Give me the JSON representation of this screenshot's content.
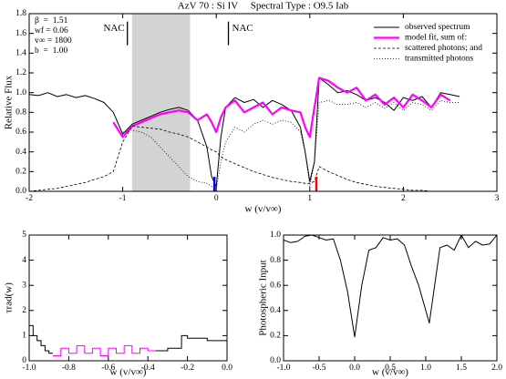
{
  "chart_data": [
    {
      "type": "line",
      "title": "AzV 70 : Si IV     Spectral Type : O9.5 Iab",
      "xlabel": "w (v/v∞)",
      "ylabel": "Relative Flux",
      "xlim": [
        -2,
        3
      ],
      "ylim": [
        0,
        1.8
      ],
      "xticks": [
        -2,
        -1,
        0,
        1,
        2,
        3
      ],
      "yticks": [
        {
          "value": 0,
          "label": "0.0"
        },
        0.2,
        0.4,
        0.6,
        0.8,
        {
          "value": 1,
          "label": "1.0"
        },
        1.2,
        1.4,
        1.6,
        1.8
      ],
      "parameters": [
        "β  =  1.51",
        "wf = 0.06",
        "v∞ = 1800",
        "b  =  1.00"
      ],
      "shaded_region": [
        -0.9,
        -0.28
      ],
      "shade_color": "#d3d3d3",
      "markers": [
        {
          "x": -0.02,
          "color": "#0000ff"
        },
        {
          "x": 1.07,
          "color": "#ff0000"
        }
      ],
      "annotations": [
        {
          "text": "NAC",
          "x": -0.95
        },
        {
          "text": "NAC",
          "x": 0.13
        }
      ],
      "x": [
        -2.0,
        -1.9,
        -1.8,
        -1.7,
        -1.6,
        -1.5,
        -1.4,
        -1.3,
        -1.2,
        -1.1,
        -1.0,
        -0.9,
        -0.8,
        -0.7,
        -0.6,
        -0.5,
        -0.4,
        -0.3,
        -0.2,
        -0.1,
        -0.05,
        0.0,
        0.05,
        0.1,
        0.2,
        0.3,
        0.4,
        0.5,
        0.6,
        0.7,
        0.8,
        0.9,
        0.95,
        1.0,
        1.05,
        1.1,
        1.2,
        1.3,
        1.4,
        1.5,
        1.6,
        1.7,
        1.8,
        1.9,
        2.0,
        2.1,
        2.2,
        2.3,
        2.4,
        2.5,
        2.6
      ],
      "series": [
        {
          "name": "observed spectrum",
          "color": "#000000",
          "dash": "solid",
          "width": 1,
          "values": [
            0.98,
            0.97,
            1.0,
            0.96,
            0.98,
            0.95,
            0.97,
            0.94,
            0.9,
            0.8,
            0.58,
            0.68,
            0.72,
            0.76,
            0.8,
            0.83,
            0.85,
            0.82,
            0.72,
            0.45,
            0.15,
            0.05,
            0.55,
            0.85,
            0.95,
            0.9,
            0.93,
            0.85,
            0.92,
            0.88,
            0.82,
            0.65,
            0.4,
            0.1,
            0.3,
            1.15,
            1.08,
            1.0,
            1.02,
            0.98,
            0.92,
            0.95,
            0.9,
            0.82,
            0.95,
            0.92,
            0.96,
            0.85,
            1.0,
            0.98,
            0.96
          ]
        },
        {
          "name": "model fit, sum of:",
          "color": "#ff00ff",
          "dash": "solid",
          "width": 2.2,
          "values": [
            null,
            null,
            null,
            null,
            null,
            null,
            null,
            null,
            null,
            0.7,
            0.55,
            0.66,
            0.7,
            0.74,
            0.78,
            0.8,
            0.82,
            0.8,
            0.72,
            0.78,
            0.7,
            0.6,
            0.75,
            0.85,
            0.92,
            0.8,
            0.85,
            0.9,
            0.78,
            0.85,
            0.82,
            0.8,
            0.65,
            0.55,
            0.85,
            1.15,
            1.12,
            1.05,
            1.0,
            1.05,
            0.92,
            0.98,
            0.88,
            0.95,
            0.85,
            0.98,
            0.92,
            0.85,
            0.98,
            0.92,
            null
          ]
        },
        {
          "name": "scattered photons; and",
          "color": "#000000",
          "dash": "dashed",
          "width": 0.8,
          "values": [
            0.0,
            0.01,
            0.02,
            0.03,
            0.05,
            0.07,
            0.09,
            0.12,
            0.15,
            0.2,
            0.5,
            0.66,
            0.65,
            0.64,
            0.63,
            0.6,
            0.58,
            0.55,
            0.5,
            0.45,
            0.42,
            0.4,
            0.35,
            0.32,
            0.28,
            0.24,
            0.2,
            0.17,
            0.14,
            0.12,
            0.1,
            0.09,
            0.08,
            0.08,
            0.1,
            0.25,
            0.2,
            0.16,
            0.12,
            0.09,
            0.07,
            0.05,
            0.04,
            0.03,
            0.02,
            0.01,
            0.01,
            0.0,
            0.0,
            0.0,
            0.0
          ]
        },
        {
          "name": "transmitted photons",
          "color": "#000000",
          "dash": "dotted",
          "width": 0.8,
          "values": [
            null,
            null,
            null,
            null,
            null,
            null,
            null,
            null,
            null,
            null,
            0.6,
            0.62,
            0.6,
            0.55,
            0.45,
            0.35,
            0.25,
            0.15,
            0.1,
            0.08,
            0.05,
            0.02,
            0.3,
            0.5,
            0.65,
            0.6,
            0.68,
            0.72,
            0.68,
            0.72,
            0.7,
            0.6,
            0.4,
            0.05,
            0.3,
            0.9,
            0.92,
            0.88,
            0.88,
            0.9,
            0.85,
            0.9,
            0.84,
            0.9,
            0.82,
            0.9,
            0.88,
            0.82,
            0.92,
            0.9,
            0.9
          ]
        }
      ]
    },
    {
      "type": "step",
      "xlabel": "w (v/v∞)",
      "ylabel": "τrad(w)",
      "xlim": [
        -1,
        0
      ],
      "ylim": [
        0,
        5
      ],
      "xticks": [
        {
          "value": -1,
          "label": "-1.0"
        },
        -0.8,
        -0.6,
        -0.4,
        -0.2,
        {
          "value": 0,
          "label": "0.0"
        }
      ],
      "yticks": [
        0,
        1,
        2,
        3,
        4,
        5
      ],
      "series": [
        {
          "color": "#000000",
          "bins": [
            -1.0,
            -0.98,
            -0.96,
            -0.94,
            -0.92,
            -0.9,
            -0.88
          ],
          "values": [
            1.4,
            1.0,
            0.8,
            0.6,
            0.4,
            0.3
          ]
        },
        {
          "color": "#ff00ff",
          "bins": [
            -0.88,
            -0.84,
            -0.8,
            -0.76,
            -0.72,
            -0.68,
            -0.64,
            -0.6,
            -0.56,
            -0.52,
            -0.48,
            -0.44,
            -0.4,
            -0.36
          ],
          "values": [
            0.2,
            0.5,
            0.3,
            0.6,
            0.3,
            0.5,
            0.2,
            0.5,
            0.3,
            0.6,
            0.3,
            0.5,
            0.4
          ]
        },
        {
          "color": "#000000",
          "bins": [
            -0.36,
            -0.3,
            -0.23,
            -0.2,
            -0.1,
            0.0
          ],
          "values": [
            0.4,
            0.5,
            1.0,
            0.9,
            0.8
          ]
        }
      ]
    },
    {
      "type": "line",
      "xlabel": "w (v/v∞)",
      "ylabel": "Photospheric Input",
      "xlim": [
        -1,
        2
      ],
      "ylim": [
        0,
        1
      ],
      "xticks": [
        {
          "value": -1,
          "label": "-1.0"
        },
        -0.5,
        {
          "value": 0,
          "label": "0.0"
        },
        0.5,
        {
          "value": 1,
          "label": "1.0"
        },
        1.5,
        {
          "value": 2,
          "label": "2.0"
        }
      ],
      "yticks": [
        {
          "value": 0,
          "label": "0.0"
        },
        0.2,
        0.4,
        0.6,
        0.8,
        {
          "value": 1,
          "label": "1.0"
        }
      ],
      "x": [
        -1.0,
        -0.9,
        -0.8,
        -0.7,
        -0.6,
        -0.5,
        -0.4,
        -0.3,
        -0.2,
        -0.1,
        0.0,
        0.1,
        0.2,
        0.3,
        0.4,
        0.5,
        0.6,
        0.7,
        0.8,
        0.9,
        1.05,
        1.2,
        1.3,
        1.4,
        1.5,
        1.6,
        1.7,
        1.8,
        1.9,
        2.0
      ],
      "series": [
        {
          "color": "#000000",
          "dash": "solid",
          "width": 1,
          "values": [
            0.96,
            0.94,
            0.95,
            0.99,
            1.0,
            0.98,
            0.96,
            0.97,
            0.8,
            0.55,
            0.19,
            0.6,
            0.88,
            0.9,
            0.98,
            0.96,
            0.97,
            0.92,
            0.75,
            0.6,
            0.3,
            0.9,
            0.92,
            0.88,
            1.0,
            0.9,
            0.95,
            0.92,
            0.93,
            1.0
          ]
        }
      ]
    }
  ]
}
